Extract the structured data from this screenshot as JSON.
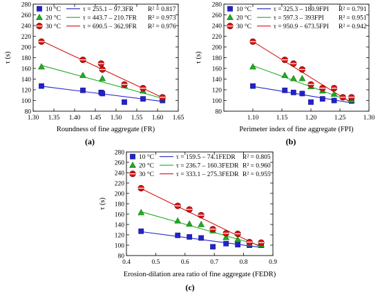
{
  "chart_data": [
    {
      "type": "scatter",
      "panel_label": "(a)",
      "xlabel": "Roundness of fine aggregate (FR)",
      "ylabel": "τ (s)",
      "xlim": [
        1.3,
        1.65
      ],
      "ylim": [
        80,
        280
      ],
      "xticks": [
        "1.30",
        "1.35",
        "1.40",
        "1.45",
        "1.50",
        "1.55",
        "1.60",
        "1.65"
      ],
      "yticks": [
        "80",
        "100",
        "120",
        "140",
        "160",
        "180",
        "200",
        "220",
        "240",
        "260",
        "280"
      ],
      "grid": false,
      "legend_position": "top-left",
      "series": [
        {
          "name": "10 °C",
          "marker": "square",
          "color": "#2222cc",
          "points": [
            [
              1.32,
              127
            ],
            [
              1.42,
              119
            ],
            [
              1.464,
              115
            ],
            [
              1.467,
              113
            ],
            [
              1.52,
              97
            ],
            [
              1.565,
              103
            ],
            [
              1.612,
              100
            ]
          ],
          "fit": {
            "intercept": 255.1,
            "slope": -97.3,
            "label": "τ = 255.1 – 97.3FR",
            "r2": "R² = 0.817"
          }
        },
        {
          "name": "20 °C",
          "marker": "triangle",
          "color": "#22aa22",
          "points": [
            [
              1.32,
              163
            ],
            [
              1.42,
              147
            ],
            [
              1.467,
              141
            ],
            [
              1.52,
              128
            ],
            [
              1.565,
              118
            ],
            [
              1.612,
              105
            ]
          ],
          "fit": {
            "intercept": 443.7,
            "slope": -210.7,
            "label": "τ = 443.7 – 210.7FR",
            "r2": "R² = 0.973"
          }
        },
        {
          "name": "30 °C",
          "marker": "circle",
          "color": "#dd1111",
          "points": [
            [
              1.32,
              210
            ],
            [
              1.42,
              176
            ],
            [
              1.464,
              169
            ],
            [
              1.467,
              158
            ],
            [
              1.52,
              130
            ],
            [
              1.565,
              123
            ],
            [
              1.612,
              106
            ]
          ],
          "fit": {
            "intercept": 690.5,
            "slope": -362.9,
            "label": "τ = 690.5 – 362.9FR",
            "r2": "R² = 0.976"
          }
        }
      ]
    },
    {
      "type": "scatter",
      "panel_label": "(b)",
      "xlabel": "Perimeter index of fine aggregate (FPI)",
      "ylabel": "τ (s)",
      "xlim": [
        1.05,
        1.3
      ],
      "ylim": [
        80,
        280
      ],
      "xticks": [
        "1.10",
        "1.15",
        "1.20",
        "1.25",
        "1.30"
      ],
      "yticks": [
        "80",
        "100",
        "120",
        "140",
        "160",
        "180",
        "200",
        "220",
        "240",
        "260",
        "280"
      ],
      "grid": false,
      "legend_position": "top-left",
      "series": [
        {
          "name": "10 °C",
          "marker": "square",
          "color": "#2222cc",
          "points": [
            [
              1.1,
              127
            ],
            [
              1.155,
              119
            ],
            [
              1.17,
              115
            ],
            [
              1.185,
              113
            ],
            [
              1.2,
              97
            ],
            [
              1.22,
              103
            ],
            [
              1.24,
              100
            ],
            [
              1.27,
              99
            ]
          ],
          "fit": {
            "intercept": 325.3,
            "slope": -180.9,
            "label": "τ = 325.3 – 180.9FPI",
            "r2": "R² = 0.791"
          }
        },
        {
          "name": "20 °C",
          "marker": "triangle",
          "color": "#22aa22",
          "points": [
            [
              1.1,
              163
            ],
            [
              1.155,
              147
            ],
            [
              1.17,
              141
            ],
            [
              1.185,
              141
            ],
            [
              1.2,
              126
            ],
            [
              1.22,
              118
            ],
            [
              1.24,
              112
            ],
            [
              1.27,
              101
            ]
          ],
          "fit": {
            "intercept": 597.3,
            "slope": -393,
            "label": "τ = 597.3 – 393FPI",
            "r2": "R² = 0.951"
          }
        },
        {
          "name": "30 °C",
          "marker": "circle",
          "color": "#dd1111",
          "points": [
            [
              1.1,
              210
            ],
            [
              1.155,
              176
            ],
            [
              1.17,
              169
            ],
            [
              1.185,
              158
            ],
            [
              1.2,
              130
            ],
            [
              1.22,
              123
            ],
            [
              1.24,
              123
            ],
            [
              1.255,
              106
            ],
            [
              1.27,
              106
            ]
          ],
          "fit": {
            "intercept": 950.9,
            "slope": -673.5,
            "label": "τ = 950.9 – 673.5FPI",
            "r2": "R² = 0.942"
          }
        }
      ]
    },
    {
      "type": "scatter",
      "panel_label": "(c)",
      "xlabel": "Erosion-dilation area ratio of fine aggregate (FEDR)",
      "ylabel": "τ (s)",
      "xlim": [
        0.4,
        0.9
      ],
      "ylim": [
        80,
        280
      ],
      "xticks": [
        "0.4",
        "0.5",
        "0.6",
        "0.7",
        "0.8",
        "0.9"
      ],
      "yticks": [
        "80",
        "100",
        "120",
        "140",
        "160",
        "180",
        "200",
        "220",
        "240",
        "260",
        "280"
      ],
      "grid": false,
      "legend_position": "top-left",
      "series": [
        {
          "name": "10 °C",
          "marker": "square",
          "color": "#2222cc",
          "points": [
            [
              0.45,
              127
            ],
            [
              0.575,
              119
            ],
            [
              0.615,
              116
            ],
            [
              0.655,
              114
            ],
            [
              0.695,
              97
            ],
            [
              0.74,
              103
            ],
            [
              0.78,
              101
            ],
            [
              0.82,
              100
            ],
            [
              0.86,
              100
            ]
          ],
          "fit": {
            "intercept": 159.5,
            "slope": -74.1,
            "label": "τ = 159.5 – 74.1FEDR",
            "r2": "R² = 0.805"
          }
        },
        {
          "name": "20 °C",
          "marker": "triangle",
          "color": "#22aa22",
          "points": [
            [
              0.45,
              163
            ],
            [
              0.575,
              147
            ],
            [
              0.615,
              141
            ],
            [
              0.655,
              140
            ],
            [
              0.695,
              128
            ],
            [
              0.74,
              115
            ],
            [
              0.78,
              111
            ],
            [
              0.82,
              103
            ],
            [
              0.86,
              101
            ]
          ],
          "fit": {
            "intercept": 236.7,
            "slope": -160.3,
            "label": "τ = 236.7 – 160.3FEDR",
            "r2": "R² = 0.960"
          }
        },
        {
          "name": "30 °C",
          "marker": "circle",
          "color": "#dd1111",
          "points": [
            [
              0.45,
              210
            ],
            [
              0.575,
              176
            ],
            [
              0.615,
              169
            ],
            [
              0.655,
              158
            ],
            [
              0.695,
              131
            ],
            [
              0.74,
              123
            ],
            [
              0.78,
              122
            ],
            [
              0.82,
              106
            ],
            [
              0.86,
              105
            ]
          ],
          "fit": {
            "intercept": 333.1,
            "slope": -275.3,
            "label": "τ = 333.1 – 275.3FEDR",
            "r2": "R² = 0.955"
          }
        }
      ]
    }
  ]
}
